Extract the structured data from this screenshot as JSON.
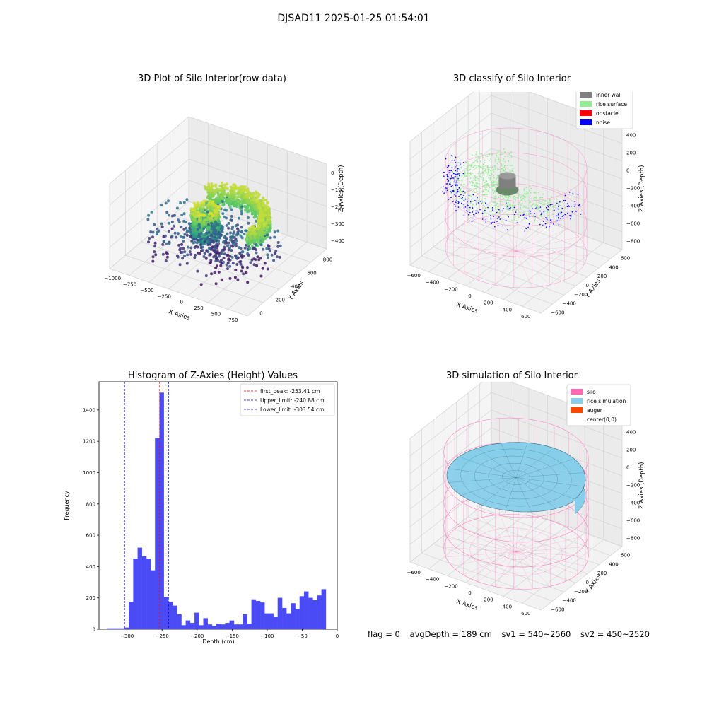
{
  "figure": {
    "title": "DJSAD11 2025-01-25 01:54:01"
  },
  "footer": {
    "flag": "flag = 0",
    "avg_depth": "avgDepth = 189 cm",
    "sv1": "sv1 = 540~2560",
    "sv2": "sv2 = 450~2520"
  },
  "colors": {
    "inner_wall": "#808080",
    "rice_surface": "#90ee90",
    "obstacle": "#ff0000",
    "noise": "#0000ff",
    "silo": "#ff69b4",
    "rice_simulation": "#87ceeb",
    "auger": "#ff4500",
    "histogram_bar": "#4b4bf5"
  },
  "chart_data": [
    {
      "type": "scatter",
      "title": "3D Plot of Silo Interior(row data)",
      "xlabel": "X Axies",
      "ylabel": "Y Axies",
      "zlabel": "Z Axies (Depth)",
      "x_ticks": [
        "−1000",
        "−750",
        "−500",
        "−250",
        "0",
        "250",
        "500",
        "750"
      ],
      "y_ticks": [
        "0",
        "200",
        "400",
        "600",
        "800"
      ],
      "z_ticks": [
        "0",
        "−100",
        "−200",
        "−300",
        "−400"
      ],
      "xlim": [
        -1000,
        850
      ],
      "ylim": [
        -100,
        950
      ],
      "zlim": [
        -450,
        0
      ],
      "colormap": "viridis",
      "grid": true
    },
    {
      "type": "scatter",
      "title": "3D classify of Silo Interior",
      "xlabel": "X Axies",
      "ylabel": "Y Axies",
      "zlabel": "Z Axies (Depth)",
      "x_ticks": [
        "−600",
        "−400",
        "−200",
        "0",
        "200",
        "400",
        "600"
      ],
      "y_ticks": [
        "−600",
        "−400",
        "−200",
        "0",
        "200",
        "400",
        "600"
      ],
      "z_ticks": [
        "400",
        "200",
        "0",
        "−200",
        "−400",
        "−600",
        "−800"
      ],
      "legend": [
        "inner wall",
        "rice surface",
        "obstacle",
        "noise"
      ],
      "legend_position": "top-right",
      "grid": true
    },
    {
      "type": "bar",
      "title": "Histogram of Z-Axies (Height) Values",
      "xlabel": "Depth (cm)",
      "ylabel": "Frequency",
      "xlim": [
        -340,
        0
      ],
      "ylim": [
        0,
        1580
      ],
      "x_ticks": [
        -300,
        -250,
        -200,
        -150,
        -100,
        -50,
        0
      ],
      "x_tick_labels": [
        "−300",
        "−250",
        "−200",
        "−150",
        "−100",
        "−50",
        "0"
      ],
      "y_ticks": [
        0,
        200,
        400,
        600,
        800,
        1000,
        1200,
        1400
      ],
      "bin_start": -328.6,
      "bin_width": 6.25,
      "values": [
        5,
        5,
        5,
        5,
        10,
        175,
        450,
        520,
        465,
        450,
        375,
        1220,
        1510,
        205,
        175,
        150,
        95,
        25,
        55,
        40,
        105,
        25,
        70,
        30,
        20,
        35,
        30,
        40,
        55,
        30,
        30,
        95,
        35,
        190,
        180,
        170,
        100,
        100,
        80,
        200,
        135,
        100,
        165,
        130,
        210,
        240,
        200,
        185,
        215,
        255
      ],
      "vlines": [
        {
          "name": "first_peak: -253.41 cm",
          "x": -253.41,
          "color": "#ff0000"
        },
        {
          "name": "Upper_limit: -240.88 cm",
          "x": -240.88,
          "color": "#0000cd"
        },
        {
          "name": "Lower_limit: -303.54 cm",
          "x": -303.54,
          "color": "#0000cd"
        }
      ],
      "legend_position": "top-right",
      "grid": false
    },
    {
      "type": "surface",
      "title": "3D simulation of Silo Interior",
      "xlabel": "X Axies",
      "ylabel": "Y Axies",
      "zlabel": "Z Axies (Depth)",
      "x_ticks": [
        "−600",
        "−400",
        "−200",
        "0",
        "200",
        "400",
        "600"
      ],
      "y_ticks": [
        "−600",
        "−400",
        "−200",
        "0",
        "200",
        "400",
        "600"
      ],
      "z_ticks": [
        "400",
        "200",
        "0",
        "−200",
        "−400",
        "−600",
        "−800"
      ],
      "legend": [
        "silo",
        "rice simulation",
        "auger",
        "center(0,0)"
      ],
      "legend_position": "top-right",
      "grid": true
    }
  ]
}
